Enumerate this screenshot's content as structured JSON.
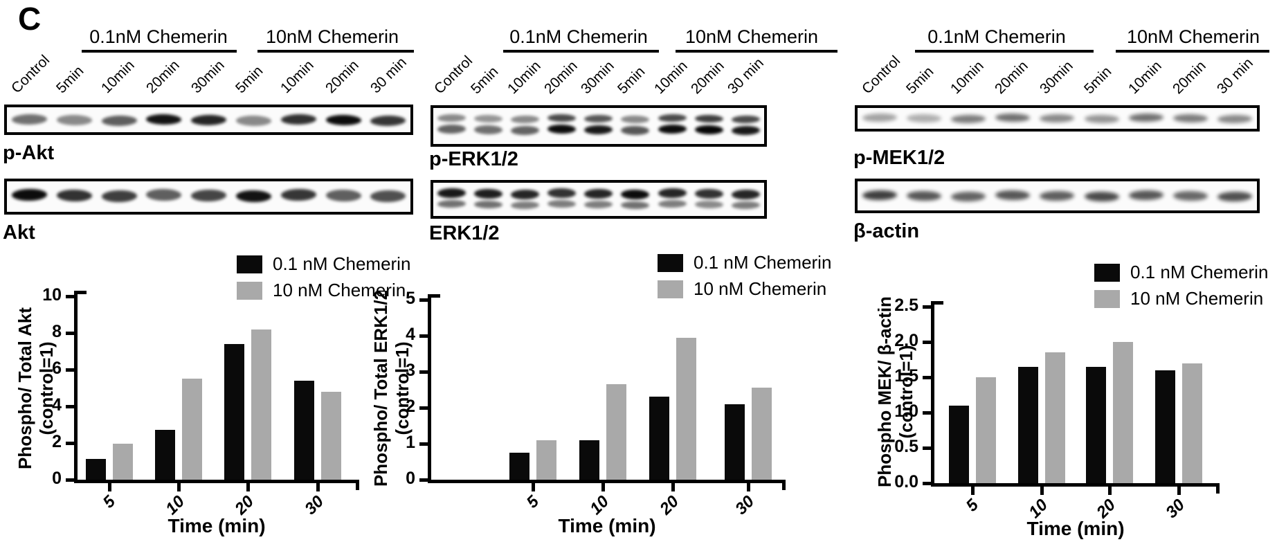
{
  "panel_label": "C",
  "treatment_groups": [
    "0.1nM Chemerin",
    "10nM Chemerin"
  ],
  "lane_labels": [
    "Control",
    "5min",
    "10min",
    "20min",
    "30min",
    "5min",
    "10min",
    "20min",
    "30 min"
  ],
  "legend": {
    "items": [
      {
        "label": "0.1 nM Chemerin",
        "color": "#0a0a0a"
      },
      {
        "label": "10 nM Chemerin",
        "color": "#a9a9a9"
      }
    ]
  },
  "blots": [
    {
      "label": "p-Akt",
      "rows": [
        [
          0.55,
          0.45,
          0.62,
          0.92,
          0.85,
          0.45,
          0.8,
          0.95,
          0.78
        ]
      ]
    },
    {
      "label": "Akt",
      "rows": [
        [
          0.95,
          0.8,
          0.75,
          0.62,
          0.72,
          0.92,
          0.78,
          0.62,
          0.68
        ]
      ]
    },
    {
      "label": "p-ERK1/2",
      "rows": [
        [
          0.45,
          0.4,
          0.45,
          0.7,
          0.65,
          0.45,
          0.7,
          0.75,
          0.7
        ],
        [
          0.6,
          0.55,
          0.6,
          0.95,
          0.9,
          0.65,
          0.95,
          0.97,
          0.9
        ]
      ]
    },
    {
      "label": "ERK1/2",
      "rows": [
        [
          0.9,
          0.88,
          0.85,
          0.8,
          0.85,
          0.95,
          0.85,
          0.8,
          0.85
        ],
        [
          0.55,
          0.55,
          0.5,
          0.5,
          0.5,
          0.55,
          0.5,
          0.45,
          0.5
        ]
      ]
    },
    {
      "label": "p-MEK1/2",
      "rows": [
        [
          0.35,
          0.3,
          0.5,
          0.55,
          0.45,
          0.4,
          0.55,
          0.5,
          0.45
        ]
      ]
    },
    {
      "label": "β-actin",
      "rows": [
        [
          0.75,
          0.65,
          0.6,
          0.65,
          0.62,
          0.7,
          0.65,
          0.58,
          0.68
        ]
      ]
    }
  ],
  "chart_data": [
    {
      "type": "bar",
      "title": "",
      "categories": [
        "5",
        "10",
        "20",
        "30"
      ],
      "xlabel": "Time (min)",
      "ylabel_lines": [
        "Phospho/ Total Akt",
        "(control=1)"
      ],
      "ylim": [
        0,
        10
      ],
      "ytick_labels": [
        "0",
        "2",
        "4",
        "6",
        "8",
        "10"
      ],
      "grid": false,
      "legend_position": "top-right",
      "series": [
        {
          "name": "0.1 nM Chemerin",
          "color": "#0a0a0a",
          "values": [
            1.15,
            2.7,
            7.4,
            5.4
          ]
        },
        {
          "name": "10 nM Chemerin",
          "color": "#a9a9a9",
          "values": [
            1.95,
            5.5,
            8.2,
            4.8
          ]
        }
      ]
    },
    {
      "type": "bar",
      "title": "",
      "categories": [
        "5",
        "10",
        "20",
        "30"
      ],
      "xlabel": "Time (min)",
      "ylabel_lines": [
        "Phospho/ Total ERK1/2",
        "(control=1)"
      ],
      "ylim": [
        0,
        5
      ],
      "ytick_labels": [
        "0",
        "1",
        "2",
        "3",
        "4",
        "5"
      ],
      "grid": false,
      "legend_position": "top-right",
      "series": [
        {
          "name": "0.1 nM Chemerin",
          "color": "#0a0a0a",
          "values": [
            0.75,
            1.1,
            2.3,
            2.1
          ]
        },
        {
          "name": "10 nM Chemerin",
          "color": "#a9a9a9",
          "values": [
            1.1,
            2.65,
            3.95,
            2.55
          ]
        }
      ]
    },
    {
      "type": "bar",
      "title": "",
      "categories": [
        "5",
        "10",
        "20",
        "30"
      ],
      "xlabel": "Time (min)",
      "ylabel_lines": [
        "Phospho MEK/ β-actin",
        "(control=1)"
      ],
      "ylim": [
        0,
        2.5
      ],
      "ytick_labels": [
        "0.0",
        "0.5",
        "1.0",
        "1.5",
        "2.0",
        "2.5"
      ],
      "grid": false,
      "legend_position": "top-right",
      "series": [
        {
          "name": "0.1 nM Chemerin",
          "color": "#0a0a0a",
          "values": [
            1.1,
            1.65,
            1.65,
            1.6
          ]
        },
        {
          "name": "10 nM Chemerin",
          "color": "#a9a9a9",
          "values": [
            1.5,
            1.85,
            2.0,
            1.7
          ]
        }
      ]
    }
  ]
}
